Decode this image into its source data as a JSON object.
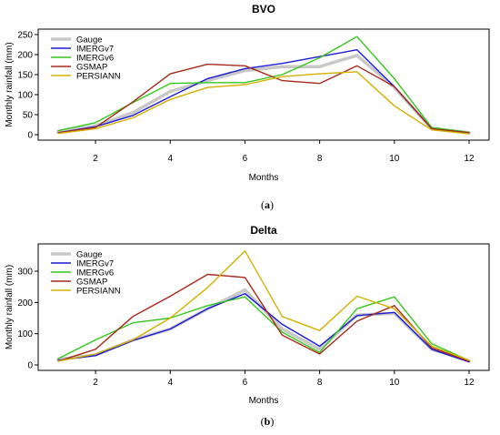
{
  "chart_data": [
    {
      "type": "line",
      "title": "BVO",
      "xlabel": "Months",
      "ylabel": "Monthly rainfall (mm)",
      "caption": "(a)",
      "caption_letter": "a",
      "x": [
        1,
        2,
        3,
        4,
        5,
        6,
        7,
        8,
        9,
        10,
        11,
        12
      ],
      "xlim": [
        1,
        12
      ],
      "ylim": [
        0,
        250
      ],
      "xticks": [
        2,
        4,
        6,
        8,
        10,
        12
      ],
      "yticks": [
        0,
        50,
        100,
        150,
        200,
        250
      ],
      "legend_position": "top-left",
      "series": [
        {
          "name": "Gauge",
          "color": "#c8c8c8",
          "width": 3.5,
          "values": [
            8,
            22,
            55,
            108,
            135,
            160,
            170,
            170,
            198,
            118,
            15,
            5
          ]
        },
        {
          "name": "IMERGv7",
          "color": "#1a1ad6",
          "width": 1.4,
          "values": [
            5,
            20,
            48,
            95,
            140,
            165,
            178,
            195,
            212,
            120,
            15,
            3
          ]
        },
        {
          "name": "IMERGv6",
          "color": "#35c81e",
          "width": 1.4,
          "values": [
            10,
            30,
            80,
            128,
            130,
            130,
            150,
            192,
            245,
            140,
            18,
            6
          ]
        },
        {
          "name": "GSMAP",
          "color": "#a52a1a",
          "width": 1.4,
          "values": [
            5,
            18,
            82,
            152,
            176,
            172,
            135,
            128,
            172,
            120,
            15,
            5
          ]
        },
        {
          "name": "PERSIANN",
          "color": "#d4b000",
          "width": 1.4,
          "values": [
            3,
            15,
            42,
            88,
            118,
            125,
            145,
            152,
            157,
            72,
            12,
            2
          ]
        }
      ]
    },
    {
      "type": "line",
      "title": "Delta",
      "xlabel": "Months",
      "ylabel": "Monthly rainfall (mm)",
      "caption": "(b)",
      "caption_letter": "b",
      "x": [
        1,
        2,
        3,
        4,
        5,
        6,
        7,
        8,
        9,
        10,
        11,
        12
      ],
      "xlim": [
        1,
        12
      ],
      "ylim": [
        0,
        370
      ],
      "xticks": [
        2,
        4,
        6,
        8,
        10,
        12
      ],
      "yticks": [
        0,
        100,
        200,
        300
      ],
      "legend_position": "top-left",
      "series": [
        {
          "name": "Gauge",
          "color": "#c8c8c8",
          "width": 3.5,
          "values": [
            18,
            32,
            80,
            115,
            180,
            240,
            115,
            50,
            160,
            165,
            50,
            12
          ]
        },
        {
          "name": "IMERGv7",
          "color": "#1a1ad6",
          "width": 1.4,
          "values": [
            15,
            30,
            78,
            115,
            180,
            228,
            130,
            60,
            158,
            168,
            50,
            10
          ]
        },
        {
          "name": "IMERGv6",
          "color": "#35c81e",
          "width": 1.4,
          "values": [
            20,
            80,
            135,
            150,
            190,
            218,
            105,
            40,
            180,
            218,
            68,
            14
          ]
        },
        {
          "name": "GSMAP",
          "color": "#a52a1a",
          "width": 1.4,
          "values": [
            12,
            50,
            155,
            220,
            290,
            280,
            95,
            35,
            140,
            190,
            55,
            12
          ]
        },
        {
          "name": "PERSIANN",
          "color": "#d4b000",
          "width": 1.4,
          "values": [
            12,
            35,
            80,
            150,
            248,
            365,
            155,
            110,
            220,
            180,
            60,
            15
          ]
        }
      ]
    }
  ]
}
